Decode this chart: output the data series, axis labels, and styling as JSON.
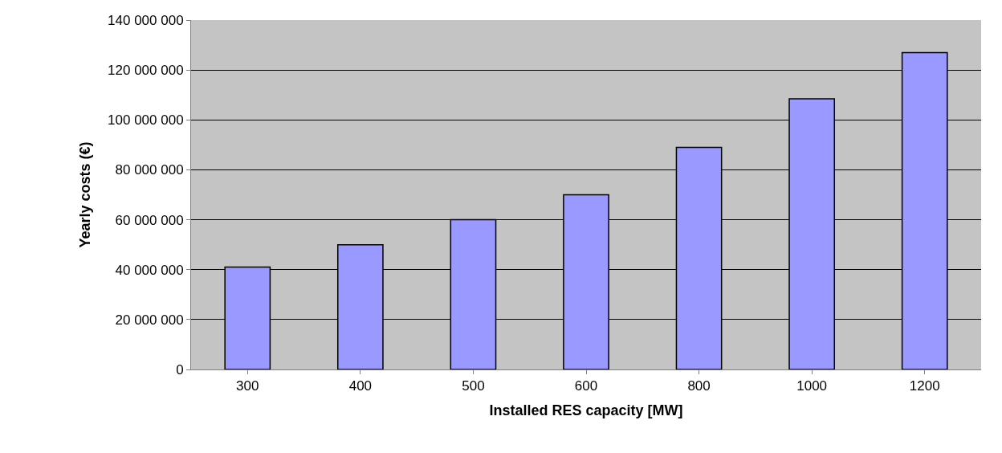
{
  "chart_data": {
    "type": "bar",
    "xlabel": "Installed RES capacity [MW]",
    "ylabel": "Yearly costs (€)",
    "categories": [
      "300",
      "400",
      "500",
      "600",
      "800",
      "1000",
      "1200"
    ],
    "values": [
      41000000,
      50000000,
      60000000,
      70000000,
      89000000,
      108500000,
      127000000
    ],
    "color": "#9999ff",
    "ylim": [
      0,
      140000000
    ],
    "yticks": [
      {
        "value": 0,
        "label": "0"
      },
      {
        "value": 20000000,
        "label": "20 000 000"
      },
      {
        "value": 40000000,
        "label": "40 000 000"
      },
      {
        "value": 60000000,
        "label": "60 000 000"
      },
      {
        "value": 80000000,
        "label": "80 000 000"
      },
      {
        "value": 100000000,
        "label": "100 000 000"
      },
      {
        "value": 120000000,
        "label": "120 000 000"
      },
      {
        "value": 140000000,
        "label": "140 000 000"
      }
    ],
    "grid": "y",
    "legend": false
  }
}
